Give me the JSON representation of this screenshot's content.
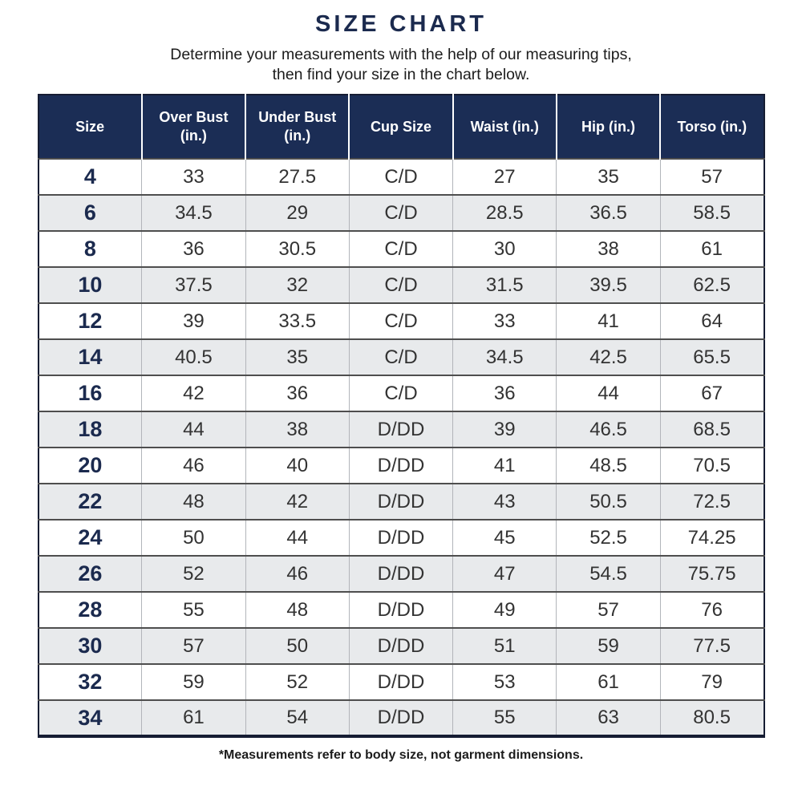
{
  "page": {
    "title": "SIZE CHART",
    "subtitle_line1": "Determine your measurements with the help of our measuring tips,",
    "subtitle_line2": "then find your size in the chart below.",
    "footnote": "*Measurements refer to body size, not garment dimensions."
  },
  "chart_data": {
    "type": "table",
    "title": "SIZE CHART",
    "columns": [
      "Size",
      "Over Bust (in.)",
      "Under Bust (in.)",
      "Cup Size",
      "Waist (in.)",
      "Hip (in.)",
      "Torso (in.)"
    ],
    "rows": [
      [
        "4",
        "33",
        "27.5",
        "C/D",
        "27",
        "35",
        "57"
      ],
      [
        "6",
        "34.5",
        "29",
        "C/D",
        "28.5",
        "36.5",
        "58.5"
      ],
      [
        "8",
        "36",
        "30.5",
        "C/D",
        "30",
        "38",
        "61"
      ],
      [
        "10",
        "37.5",
        "32",
        "C/D",
        "31.5",
        "39.5",
        "62.5"
      ],
      [
        "12",
        "39",
        "33.5",
        "C/D",
        "33",
        "41",
        "64"
      ],
      [
        "14",
        "40.5",
        "35",
        "C/D",
        "34.5",
        "42.5",
        "65.5"
      ],
      [
        "16",
        "42",
        "36",
        "C/D",
        "36",
        "44",
        "67"
      ],
      [
        "18",
        "44",
        "38",
        "D/DD",
        "39",
        "46.5",
        "68.5"
      ],
      [
        "20",
        "46",
        "40",
        "D/DD",
        "41",
        "48.5",
        "70.5"
      ],
      [
        "22",
        "48",
        "42",
        "D/DD",
        "43",
        "50.5",
        "72.5"
      ],
      [
        "24",
        "50",
        "44",
        "D/DD",
        "45",
        "52.5",
        "74.25"
      ],
      [
        "26",
        "52",
        "46",
        "D/DD",
        "47",
        "54.5",
        "75.75"
      ],
      [
        "28",
        "55",
        "48",
        "D/DD",
        "49",
        "57",
        "76"
      ],
      [
        "30",
        "57",
        "50",
        "D/DD",
        "51",
        "59",
        "77.5"
      ],
      [
        "32",
        "59",
        "52",
        "D/DD",
        "53",
        "61",
        "79"
      ],
      [
        "34",
        "61",
        "54",
        "D/DD",
        "55",
        "63",
        "80.5"
      ]
    ],
    "layout": {
      "alternating_rows": true,
      "first_row_background": "white",
      "header_style": "navy background, white bold text"
    }
  },
  "colors": {
    "header_bg": "#1b2d55",
    "title_text": "#1b2a4e",
    "alt_row_bg": "#e8eaec",
    "body_text": "#333333",
    "size_column_text": "#1b2a4e"
  }
}
